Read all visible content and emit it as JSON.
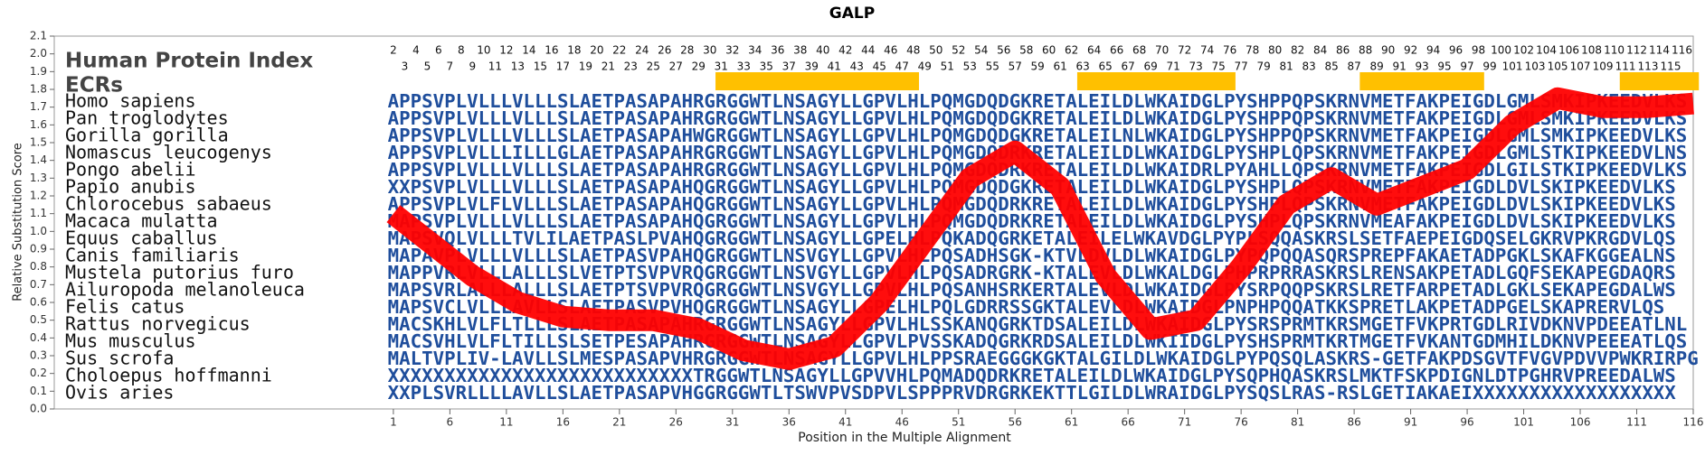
{
  "chart_data": {
    "type": "line",
    "title": "GALP",
    "x_label": "Position in the Multiple Alignment",
    "y_label": "Relative Substitution Score",
    "index_label": "Human Protein Index",
    "ecr_label": "ECRs",
    "xlim": [
      -29,
      116
    ],
    "ylim": [
      0,
      2.1
    ],
    "xticks": [
      1,
      6,
      11,
      16,
      21,
      26,
      31,
      36,
      41,
      46,
      51,
      56,
      61,
      66,
      71,
      76,
      81,
      86,
      91,
      96,
      101,
      106,
      111,
      116
    ],
    "yticks": [
      {
        "value": 0,
        "label": "0.0"
      },
      0.1,
      0.2,
      0.3,
      0.4,
      0.5,
      0.6,
      0.7,
      0.8,
      0.9,
      {
        "value": 1,
        "label": "1.0"
      },
      1.1,
      1.2,
      1.3,
      1.4,
      1.5,
      1.6,
      1.7,
      1.8,
      1.9,
      {
        "value": 2,
        "label": "2.0"
      },
      2.1
    ],
    "color": "#ff0000",
    "x": [
      1,
      4,
      8,
      12,
      16,
      20,
      24,
      28,
      32,
      36,
      40,
      44,
      48,
      52,
      56,
      60,
      64,
      68,
      72,
      76,
      80,
      84,
      88,
      92,
      96,
      100,
      104,
      108,
      112,
      116
    ],
    "values": [
      1.1,
      0.95,
      0.75,
      0.6,
      0.52,
      0.5,
      0.5,
      0.45,
      0.33,
      0.28,
      0.35,
      0.6,
      0.95,
      1.3,
      1.45,
      1.25,
      0.75,
      0.45,
      0.5,
      0.8,
      1.15,
      1.3,
      1.15,
      1.25,
      1.35,
      1.6,
      1.75,
      1.7,
      1.7,
      1.72
    ],
    "ecr_color": "#ffc000",
    "ecrs": [
      {
        "start": 30,
        "end": 47
      },
      {
        "start": 62,
        "end": 75
      },
      {
        "start": 87,
        "end": 97
      },
      {
        "start": 110,
        "end": 116
      }
    ],
    "human_index": [
      2,
      3,
      4,
      5,
      6,
      7,
      8,
      9,
      10,
      11,
      12,
      13,
      14,
      15,
      16,
      17,
      18,
      19,
      20,
      21,
      22,
      23,
      24,
      25,
      26,
      27,
      28,
      29,
      30,
      31,
      32,
      33,
      34,
      35,
      36,
      37,
      38,
      39,
      40,
      41,
      42,
      43,
      44,
      45,
      46,
      47,
      48,
      49,
      50,
      51,
      52,
      53,
      54,
      55,
      56,
      57,
      58,
      59,
      60,
      61,
      62,
      63,
      64,
      65,
      66,
      67,
      68,
      69,
      70,
      71,
      72,
      73,
      74,
      75,
      76,
      77,
      78,
      79,
      80,
      81,
      82,
      83,
      84,
      85,
      86,
      87,
      88,
      89,
      90,
      91,
      92,
      93,
      94,
      95,
      96,
      97,
      98,
      99,
      100,
      101,
      102,
      103,
      104,
      105,
      106,
      107,
      108,
      109,
      110,
      111,
      112,
      113,
      114,
      115,
      116
    ],
    "rows": [
      {
        "name": "Homo sapiens",
        "sequence": "APPSVPLVLLLVLLLSLAETPASAPAHRGRGGWTLNSAGYLLGPVLHLPQMGDQDGKRETALEILDLWKAIDGLPYSHPPQPSKRNVMETFAKPEIGDLGMLSMKIPKEEDVLKS"
      },
      {
        "name": "Pan troglodytes",
        "sequence": "APPSVPLVLLLVLLLSLAETPASAPAHRGRGGWTLNSAGYLLGPVLHLPQMGDQDGKRETALEILDLWKAIDGLPYSHPPQPSKRNVMETFAKPEIGDLGMLSMKIPKEEDVLKS"
      },
      {
        "name": "Gorilla gorilla",
        "sequence": "APPSVPLVLLLVLLLSLAETPASAPAHWGRGGWTLNSAGYLLGPVLHLPQMGDQDGKRETALEILNLWKAIDGLPYSHPPQPSKRNVMETFAKPEIGDLGMLSMKIPKEEDVLKS"
      },
      {
        "name": "Nomascus leucogenys",
        "sequence": "APPSVPLVLLLILLLGLAETPASAPAHRGRGGWTLNSAGYLLGPVLHLPQMGDQDRKRETALEILDLWKAIDGLPYSHPLQPSKRNVMETFAKPEIGDLGMLSTKIPKEEDVLNS"
      },
      {
        "name": "Pongo abelii",
        "sequence": "APPSVPLVLLLVLLLSLAETPASAPAHRGRGGWTLNSAGYLLGPVLHLPQMGDQDRKRETALEILDLWKAIDRLPYAHLLQPSKRNVMETFAKPEIGDLGILSTKIPKEEDVLKS"
      },
      {
        "name": "Papio anubis",
        "sequence": "XXPSVPLVLLLVLLLSLAETPASAPAHQGRGGWTLNSAGYLLGPVLHLPQMGDQDGKRETALEILDLWKAIDGLPYSHPLQPSKRNVMETFAKPEIGDLDVLSKIPKEEDVLKS"
      },
      {
        "name": "Chlorocebus sabaeus",
        "sequence": "APPSVPLVLFLVLLLSLAETPASAPAHQGRGGWTLNSAGYLLGPVLHLPQMGDQDRKRETALEILDLWKAIDGLPYSHPLQPSKRNVMETFAKPEIGDLDVLSKIPKEEDVLKS"
      },
      {
        "name": "Macaca mulatta",
        "sequence": "MAPSVPLVLLLVLLLSLAETPASAPAHQGRGGWTLNSAGYLLGPVLHLPQMGDQDRKRETALEILDLWKAIDGLPYSHPLQPSKRNVMEAFAKPEIGDLDVLSKIPKEEDVLKS"
      },
      {
        "name": "Equus caballus",
        "sequence": "MAPSVQLVLLLTVLILAETPASLPVAHQGRGGWTLNSAGYLLGPELHLPQKADQGRKETALEILELWKAVDGLPYPLSQQASKRSLSETFAEPEIGDQSELGKRVPKRGDVLQS"
      },
      {
        "name": "Canis familiaris",
        "sequence": "MAPAVPLVLLLVLLLSLAETPASVPAHQGRGGWTLNSVGYLLGPVLHLPQSADHSGK-KTVLDVLDLWKAIDGLPYPQPQQASQRSPREPFAKAETADPGKLSKAFKGGEALNS"
      },
      {
        "name": "Mustela putorius furo",
        "sequence": "MAPPVRLVLLLALLLSLVETPTSVPVRQGRGGWTLNSVGYLLGPVLHLPQSADRGRK-KTALEVLDLWKALDGLPHPRPRRASKRSLRENSAKPETADLGQFSEKAPEGDAQRS"
      },
      {
        "name": "Ailuropoda melanoleuca",
        "sequence": "MAPSVRLALLLALLLSLAETPTSVPVRQGRGGWTLNSVGYLLGPVLHLPQSANHSRKERTALEVLDLWKAIDGLPYSRPQQPSKRSLRETFARPETADLGKLSEKAPEGDALWS"
      },
      {
        "name": "Felis catus",
        "sequence": "MAPSVCLVLLLAVLLSLAETPASVPVHQGRGGWTLNSAGYLLGPELHLPQLGDRRSSGKTALEVLDLWKAIDGLPNPHPQQATKKSPRETLAKPETADPGELSKAPRERVLQS"
      },
      {
        "name": "Rattus norvegicus",
        "sequence": "MACSKHLVLFLTLLLSLAETPASAPAHRGRGGWTLNSAGYLLGPVLHLSSKANQGRKTDSALEILDLWKAIDGLPYSRSPRMTKRSMGETFVKPRTGDLRIVDKNVPDEEATLNL"
      },
      {
        "name": "Mus musculus",
        "sequence": "MACSVHLVLFLTILLSLSETPESAPAHRGRGGWTLNSAGYLLGPVLPVSSKADQGRKRDSALEILDLWKIIDGLPYSHSPRMTKRTMGETFVKANTGDMHILDKNVPEEEATLQS"
      },
      {
        "name": "Sus scrofa",
        "sequence": "MALTVPLIV-LAVLLSLMESPASAPVHRGRGGWTLNSAGYLLGPVLHLPPSRAEGGGKGKTALGILDLWKAIDGLPYPQSQLASKRS-GETFAKPDSGVTFVGVPDVVPWKRIRPG"
      },
      {
        "name": "Choloepus hoffmanni",
        "sequence": "XXXXXXXXXXXXXXXXXXXXXXXXXXXTRGGWTLNSAGYLLGPVVHLPQMADQDRKRETALEILDLWKAIDGLPYSQPHQASKRSLMKTFSKPDIGNLDTPGHRVPREEDALWS"
      },
      {
        "name": "Ovis aries",
        "sequence": "XXPLSVRLLLLAVLLSLAETPASAPVHGGRGGWTLTSWVPVSDPVLSPPPRVDRGRKEKTTLGILDLWRAIDGLPYSQSLRAS-RSLGETIAKAEIXXXXXXXXXXXXXXXXXX"
      }
    ]
  }
}
